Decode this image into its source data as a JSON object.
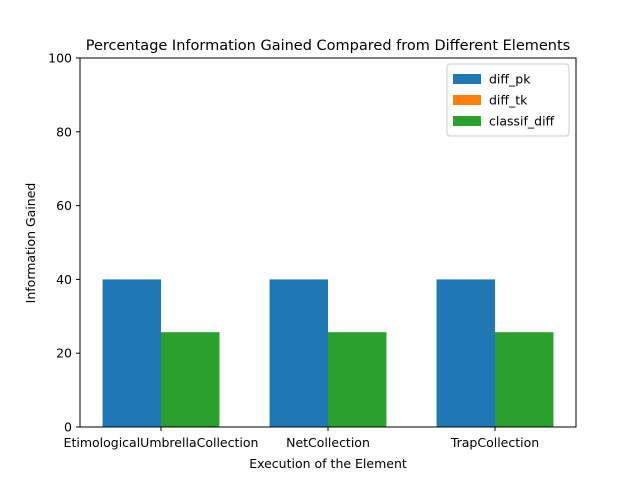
{
  "chart_data": {
    "type": "bar",
    "title": "Percentage Information Gained Compared from Different Elements",
    "xlabel": "Execution of the Element",
    "ylabel": "Information Gained",
    "categories": [
      "EtimologicalUmbrellaCollection",
      "NetCollection",
      "TrapCollection"
    ],
    "series": [
      {
        "name": "diff_pk",
        "color": "#1f77b4",
        "values": [
          40,
          40,
          40
        ]
      },
      {
        "name": "diff_tk",
        "color": "#ff7f0e",
        "values": [
          0,
          0,
          0
        ]
      },
      {
        "name": "classif_diff",
        "color": "#2ca02c",
        "values": [
          25.7,
          25.7,
          25.7
        ]
      }
    ],
    "ylim": [
      0,
      100
    ],
    "yticks": [
      "0",
      "20",
      "40",
      "60",
      "80",
      "100"
    ],
    "grid": false,
    "legend_position": "top-right"
  }
}
